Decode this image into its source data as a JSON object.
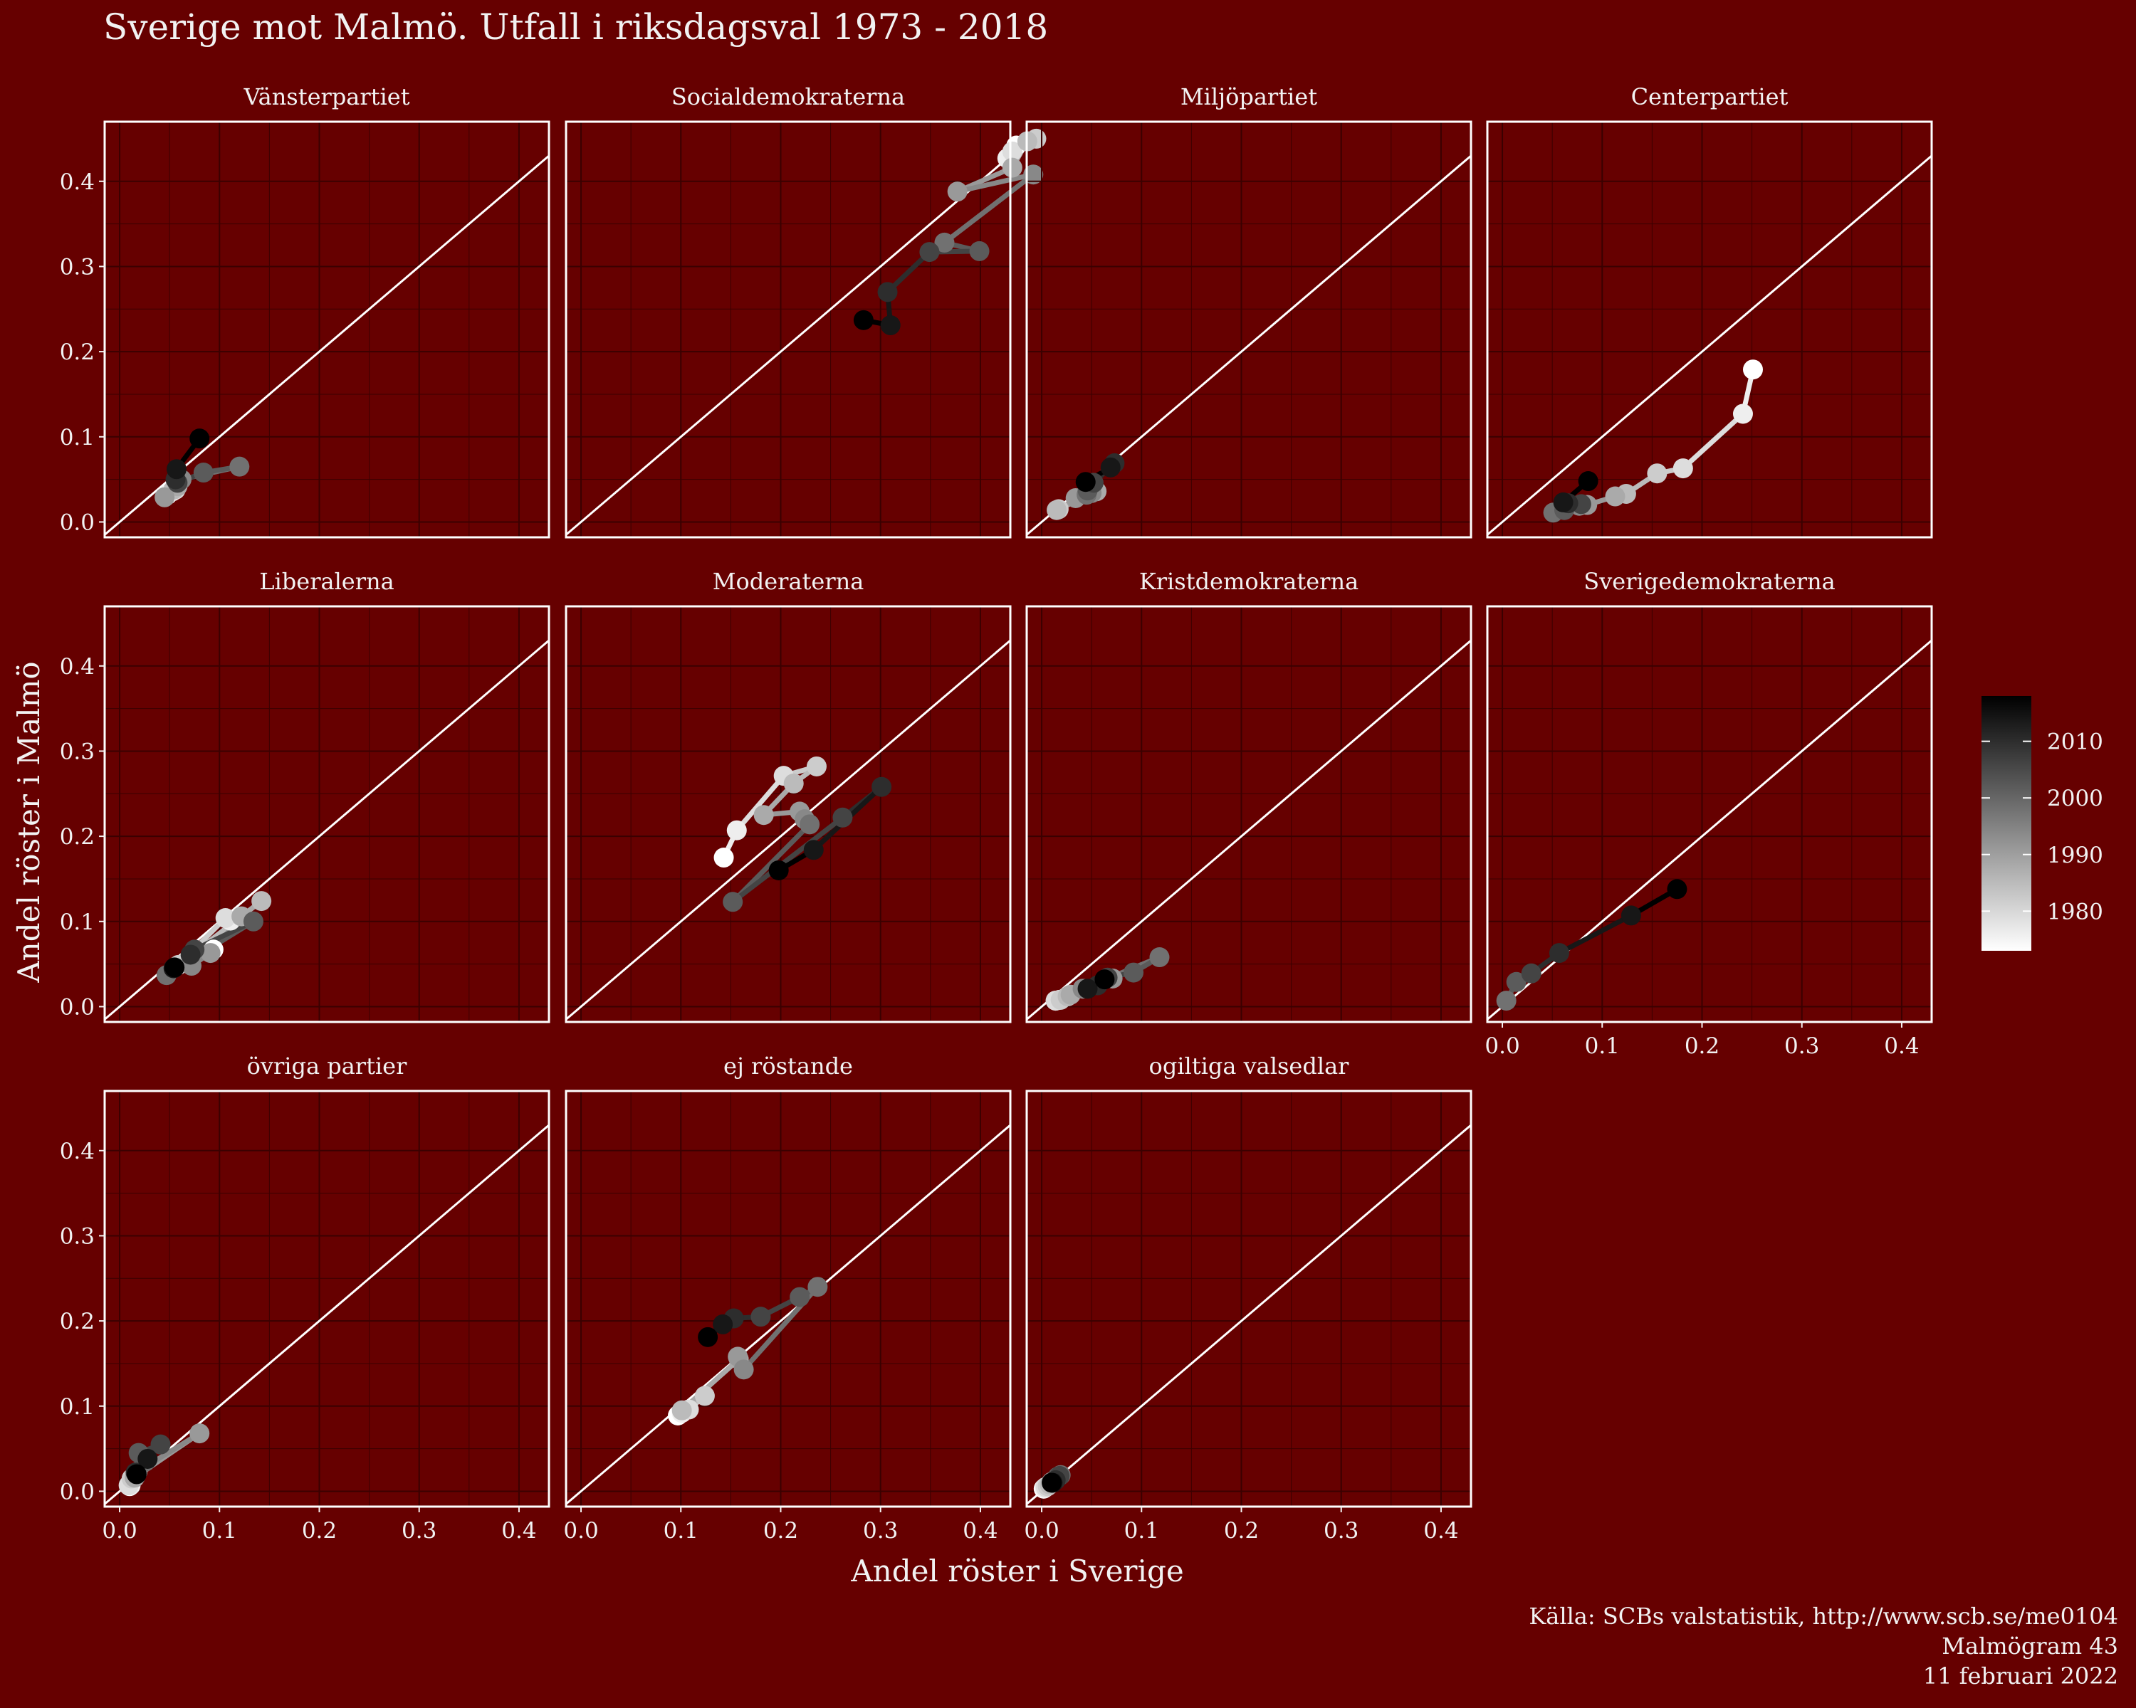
{
  "title": "Sverige mot Malmö. Utfall i riksdagsval 1973 - 2018",
  "caption": [
    "Källa: SCBs valstatistik, http://www.scb.se/me0104",
    "Malmögram 43",
    "11 februari 2022"
  ],
  "chart_data": {
    "type": "scatter",
    "facet_type": "connected scatter with y = x reference line",
    "xlabel": "Andel röster i Sverige",
    "ylabel": "Andel röster i Malmö",
    "xlim": [
      -0.015,
      0.43
    ],
    "ylim": [
      -0.018,
      0.47
    ],
    "x_ticks": [
      "0.0",
      "0.1",
      "0.2",
      "0.3",
      "0.4"
    ],
    "y_ticks": [
      "0.0",
      "0.1",
      "0.2",
      "0.3",
      "0.4"
    ],
    "grid": true,
    "legend": {
      "position": "right",
      "type": "gradient",
      "min_year": 1973,
      "max_year": 2018,
      "ticks": [
        "1980",
        "1990",
        "2000",
        "2010"
      ],
      "low_color": "#ffffff",
      "high_color": "#000000"
    },
    "years": [
      1973,
      1976,
      1979,
      1982,
      1985,
      1988,
      1991,
      1994,
      1998,
      2002,
      2006,
      2010,
      2014,
      2018
    ],
    "facets": [
      {
        "name": "Vänsterpartiet",
        "points": [
          {
            "year": 1973,
            "x": 0.053,
            "y": 0.036
          },
          {
            "year": 1976,
            "x": 0.048,
            "y": 0.032
          },
          {
            "year": 1979,
            "x": 0.056,
            "y": 0.038
          },
          {
            "year": 1982,
            "x": 0.056,
            "y": 0.04
          },
          {
            "year": 1985,
            "x": 0.054,
            "y": 0.038
          },
          {
            "year": 1988,
            "x": 0.058,
            "y": 0.042
          },
          {
            "year": 1991,
            "x": 0.045,
            "y": 0.029
          },
          {
            "year": 1994,
            "x": 0.062,
            "y": 0.05
          },
          {
            "year": 1998,
            "x": 0.12,
            "y": 0.065
          },
          {
            "year": 2002,
            "x": 0.084,
            "y": 0.058
          },
          {
            "year": 2006,
            "x": 0.058,
            "y": 0.046
          },
          {
            "year": 2010,
            "x": 0.056,
            "y": 0.05
          },
          {
            "year": 2014,
            "x": 0.057,
            "y": 0.062
          },
          {
            "year": 2018,
            "x": 0.08,
            "y": 0.098
          }
        ]
      },
      {
        "name": "Socialdemokraterna",
        "points": [
          {
            "year": 1973,
            "x": 0.436,
            "y": 0.442
          },
          {
            "year": 1976,
            "x": 0.427,
            "y": 0.427
          },
          {
            "year": 1979,
            "x": 0.432,
            "y": 0.435
          },
          {
            "year": 1982,
            "x": 0.456,
            "y": 0.45
          },
          {
            "year": 1985,
            "x": 0.447,
            "y": 0.447
          },
          {
            "year": 1988,
            "x": 0.432,
            "y": 0.416
          },
          {
            "year": 1991,
            "x": 0.377,
            "y": 0.388
          },
          {
            "year": 1994,
            "x": 0.453,
            "y": 0.408
          },
          {
            "year": 1998,
            "x": 0.364,
            "y": 0.328
          },
          {
            "year": 2002,
            "x": 0.399,
            "y": 0.318
          },
          {
            "year": 2006,
            "x": 0.349,
            "y": 0.317
          },
          {
            "year": 2010,
            "x": 0.307,
            "y": 0.27
          },
          {
            "year": 2014,
            "x": 0.31,
            "y": 0.231
          },
          {
            "year": 2018,
            "x": 0.283,
            "y": 0.237
          }
        ]
      },
      {
        "name": "Miljöpartiet",
        "points": [
          {
            "year": 1982,
            "x": 0.017,
            "y": 0.015
          },
          {
            "year": 1985,
            "x": 0.015,
            "y": 0.014
          },
          {
            "year": 1988,
            "x": 0.055,
            "y": 0.036
          },
          {
            "year": 1991,
            "x": 0.034,
            "y": 0.028
          },
          {
            "year": 1994,
            "x": 0.05,
            "y": 0.034
          },
          {
            "year": 1998,
            "x": 0.045,
            "y": 0.032
          },
          {
            "year": 2002,
            "x": 0.046,
            "y": 0.037
          },
          {
            "year": 2006,
            "x": 0.052,
            "y": 0.046
          },
          {
            "year": 2010,
            "x": 0.073,
            "y": 0.069
          },
          {
            "year": 2014,
            "x": 0.069,
            "y": 0.064
          },
          {
            "year": 2018,
            "x": 0.044,
            "y": 0.047
          }
        ]
      },
      {
        "name": "Centerpartiet",
        "points": [
          {
            "year": 1973,
            "x": 0.251,
            "y": 0.179
          },
          {
            "year": 1976,
            "x": 0.241,
            "y": 0.127
          },
          {
            "year": 1979,
            "x": 0.181,
            "y": 0.063
          },
          {
            "year": 1982,
            "x": 0.155,
            "y": 0.057
          },
          {
            "year": 1985,
            "x": 0.124,
            "y": 0.033
          },
          {
            "year": 1988,
            "x": 0.113,
            "y": 0.03
          },
          {
            "year": 1991,
            "x": 0.085,
            "y": 0.02
          },
          {
            "year": 1994,
            "x": 0.077,
            "y": 0.019
          },
          {
            "year": 1998,
            "x": 0.051,
            "y": 0.011
          },
          {
            "year": 2002,
            "x": 0.062,
            "y": 0.014
          },
          {
            "year": 2006,
            "x": 0.079,
            "y": 0.021
          },
          {
            "year": 2010,
            "x": 0.066,
            "y": 0.022
          },
          {
            "year": 2014,
            "x": 0.061,
            "y": 0.023
          },
          {
            "year": 2018,
            "x": 0.086,
            "y": 0.048
          }
        ]
      },
      {
        "name": "Liberalerna",
        "points": [
          {
            "year": 1973,
            "x": 0.094,
            "y": 0.067
          },
          {
            "year": 1976,
            "x": 0.111,
            "y": 0.101
          },
          {
            "year": 1979,
            "x": 0.106,
            "y": 0.104
          },
          {
            "year": 1982,
            "x": 0.059,
            "y": 0.049
          },
          {
            "year": 1985,
            "x": 0.142,
            "y": 0.124
          },
          {
            "year": 1988,
            "x": 0.122,
            "y": 0.106
          },
          {
            "year": 1991,
            "x": 0.091,
            "y": 0.063
          },
          {
            "year": 1994,
            "x": 0.072,
            "y": 0.048
          },
          {
            "year": 1998,
            "x": 0.047,
            "y": 0.037
          },
          {
            "year": 2002,
            "x": 0.134,
            "y": 0.1
          },
          {
            "year": 2006,
            "x": 0.075,
            "y": 0.067
          },
          {
            "year": 2010,
            "x": 0.071,
            "y": 0.061
          },
          {
            "year": 2014,
            "x": 0.054,
            "y": 0.045
          },
          {
            "year": 2018,
            "x": 0.055,
            "y": 0.046
          }
        ]
      },
      {
        "name": "Moderaterna",
        "points": [
          {
            "year": 1973,
            "x": 0.143,
            "y": 0.175
          },
          {
            "year": 1976,
            "x": 0.156,
            "y": 0.207
          },
          {
            "year": 1979,
            "x": 0.203,
            "y": 0.271
          },
          {
            "year": 1982,
            "x": 0.236,
            "y": 0.282
          },
          {
            "year": 1985,
            "x": 0.213,
            "y": 0.262
          },
          {
            "year": 1988,
            "x": 0.183,
            "y": 0.225
          },
          {
            "year": 1991,
            "x": 0.219,
            "y": 0.229
          },
          {
            "year": 1994,
            "x": 0.224,
            "y": 0.22
          },
          {
            "year": 1998,
            "x": 0.229,
            "y": 0.214
          },
          {
            "year": 2002,
            "x": 0.152,
            "y": 0.123
          },
          {
            "year": 2006,
            "x": 0.262,
            "y": 0.222
          },
          {
            "year": 2010,
            "x": 0.301,
            "y": 0.258
          },
          {
            "year": 2014,
            "x": 0.233,
            "y": 0.184
          },
          {
            "year": 2018,
            "x": 0.198,
            "y": 0.16
          }
        ]
      },
      {
        "name": "Kristdemokraterna",
        "points": [
          {
            "year": 1973,
            "x": 0.018,
            "y": 0.008
          },
          {
            "year": 1976,
            "x": 0.014,
            "y": 0.007
          },
          {
            "year": 1979,
            "x": 0.014,
            "y": 0.007
          },
          {
            "year": 1982,
            "x": 0.019,
            "y": 0.008
          },
          {
            "year": 1985,
            "x": 0.026,
            "y": 0.012
          },
          {
            "year": 1988,
            "x": 0.029,
            "y": 0.014
          },
          {
            "year": 1991,
            "x": 0.071,
            "y": 0.033
          },
          {
            "year": 1994,
            "x": 0.041,
            "y": 0.021
          },
          {
            "year": 1998,
            "x": 0.118,
            "y": 0.058
          },
          {
            "year": 2002,
            "x": 0.092,
            "y": 0.04
          },
          {
            "year": 2006,
            "x": 0.066,
            "y": 0.034
          },
          {
            "year": 2010,
            "x": 0.056,
            "y": 0.025
          },
          {
            "year": 2014,
            "x": 0.046,
            "y": 0.021
          },
          {
            "year": 2018,
            "x": 0.063,
            "y": 0.032
          }
        ]
      },
      {
        "name": "Sverigedemokraterna",
        "points": [
          {
            "year": 1998,
            "x": 0.004,
            "y": 0.007
          },
          {
            "year": 2002,
            "x": 0.014,
            "y": 0.029
          },
          {
            "year": 2006,
            "x": 0.029,
            "y": 0.039
          },
          {
            "year": 2010,
            "x": 0.057,
            "y": 0.063
          },
          {
            "year": 2014,
            "x": 0.129,
            "y": 0.107
          },
          {
            "year": 2018,
            "x": 0.175,
            "y": 0.138
          }
        ]
      },
      {
        "name": "övriga partier",
        "points": [
          {
            "year": 1973,
            "x": 0.01,
            "y": 0.006
          },
          {
            "year": 1976,
            "x": 0.011,
            "y": 0.007
          },
          {
            "year": 1979,
            "x": 0.009,
            "y": 0.007
          },
          {
            "year": 1982,
            "x": 0.012,
            "y": 0.015
          },
          {
            "year": 1985,
            "x": 0.016,
            "y": 0.018
          },
          {
            "year": 1988,
            "x": 0.015,
            "y": 0.016
          },
          {
            "year": 1991,
            "x": 0.08,
            "y": 0.068
          },
          {
            "year": 1994,
            "x": 0.018,
            "y": 0.023
          },
          {
            "year": 1998,
            "x": 0.026,
            "y": 0.035
          },
          {
            "year": 2002,
            "x": 0.019,
            "y": 0.045
          },
          {
            "year": 2006,
            "x": 0.041,
            "y": 0.055
          },
          {
            "year": 2010,
            "x": 0.016,
            "y": 0.022
          },
          {
            "year": 2014,
            "x": 0.028,
            "y": 0.038
          },
          {
            "year": 2018,
            "x": 0.017,
            "y": 0.02
          }
        ]
      },
      {
        "name": "ej röstande",
        "points": [
          {
            "year": 1973,
            "x": 0.097,
            "y": 0.089
          },
          {
            "year": 1976,
            "x": 0.101,
            "y": 0.092
          },
          {
            "year": 1979,
            "x": 0.108,
            "y": 0.096
          },
          {
            "year": 1982,
            "x": 0.124,
            "y": 0.112
          },
          {
            "year": 1985,
            "x": 0.101,
            "y": 0.095
          },
          {
            "year": 1988,
            "x": 0.158,
            "y": 0.155
          },
          {
            "year": 1991,
            "x": 0.157,
            "y": 0.158
          },
          {
            "year": 1994,
            "x": 0.163,
            "y": 0.143
          },
          {
            "year": 1998,
            "x": 0.237,
            "y": 0.24
          },
          {
            "year": 2002,
            "x": 0.219,
            "y": 0.228
          },
          {
            "year": 2006,
            "x": 0.18,
            "y": 0.205
          },
          {
            "year": 2010,
            "x": 0.153,
            "y": 0.203
          },
          {
            "year": 2014,
            "x": 0.142,
            "y": 0.196
          },
          {
            "year": 2018,
            "x": 0.127,
            "y": 0.181
          }
        ]
      },
      {
        "name": "ogiltiga valsedlar",
        "points": [
          {
            "year": 1973,
            "x": 0.002,
            "y": 0.003
          },
          {
            "year": 1976,
            "x": 0.003,
            "y": 0.004
          },
          {
            "year": 1979,
            "x": 0.004,
            "y": 0.005
          },
          {
            "year": 1982,
            "x": 0.006,
            "y": 0.006
          },
          {
            "year": 1985,
            "x": 0.008,
            "y": 0.008
          },
          {
            "year": 1988,
            "x": 0.01,
            "y": 0.011
          },
          {
            "year": 1991,
            "x": 0.012,
            "y": 0.012
          },
          {
            "year": 1994,
            "x": 0.014,
            "y": 0.014
          },
          {
            "year": 1998,
            "x": 0.019,
            "y": 0.019
          },
          {
            "year": 2002,
            "x": 0.016,
            "y": 0.017
          },
          {
            "year": 2006,
            "x": 0.018,
            "y": 0.018
          },
          {
            "year": 2010,
            "x": 0.014,
            "y": 0.013
          },
          {
            "year": 2014,
            "x": 0.011,
            "y": 0.01
          },
          {
            "year": 2018,
            "x": 0.01,
            "y": 0.01
          }
        ]
      }
    ]
  }
}
